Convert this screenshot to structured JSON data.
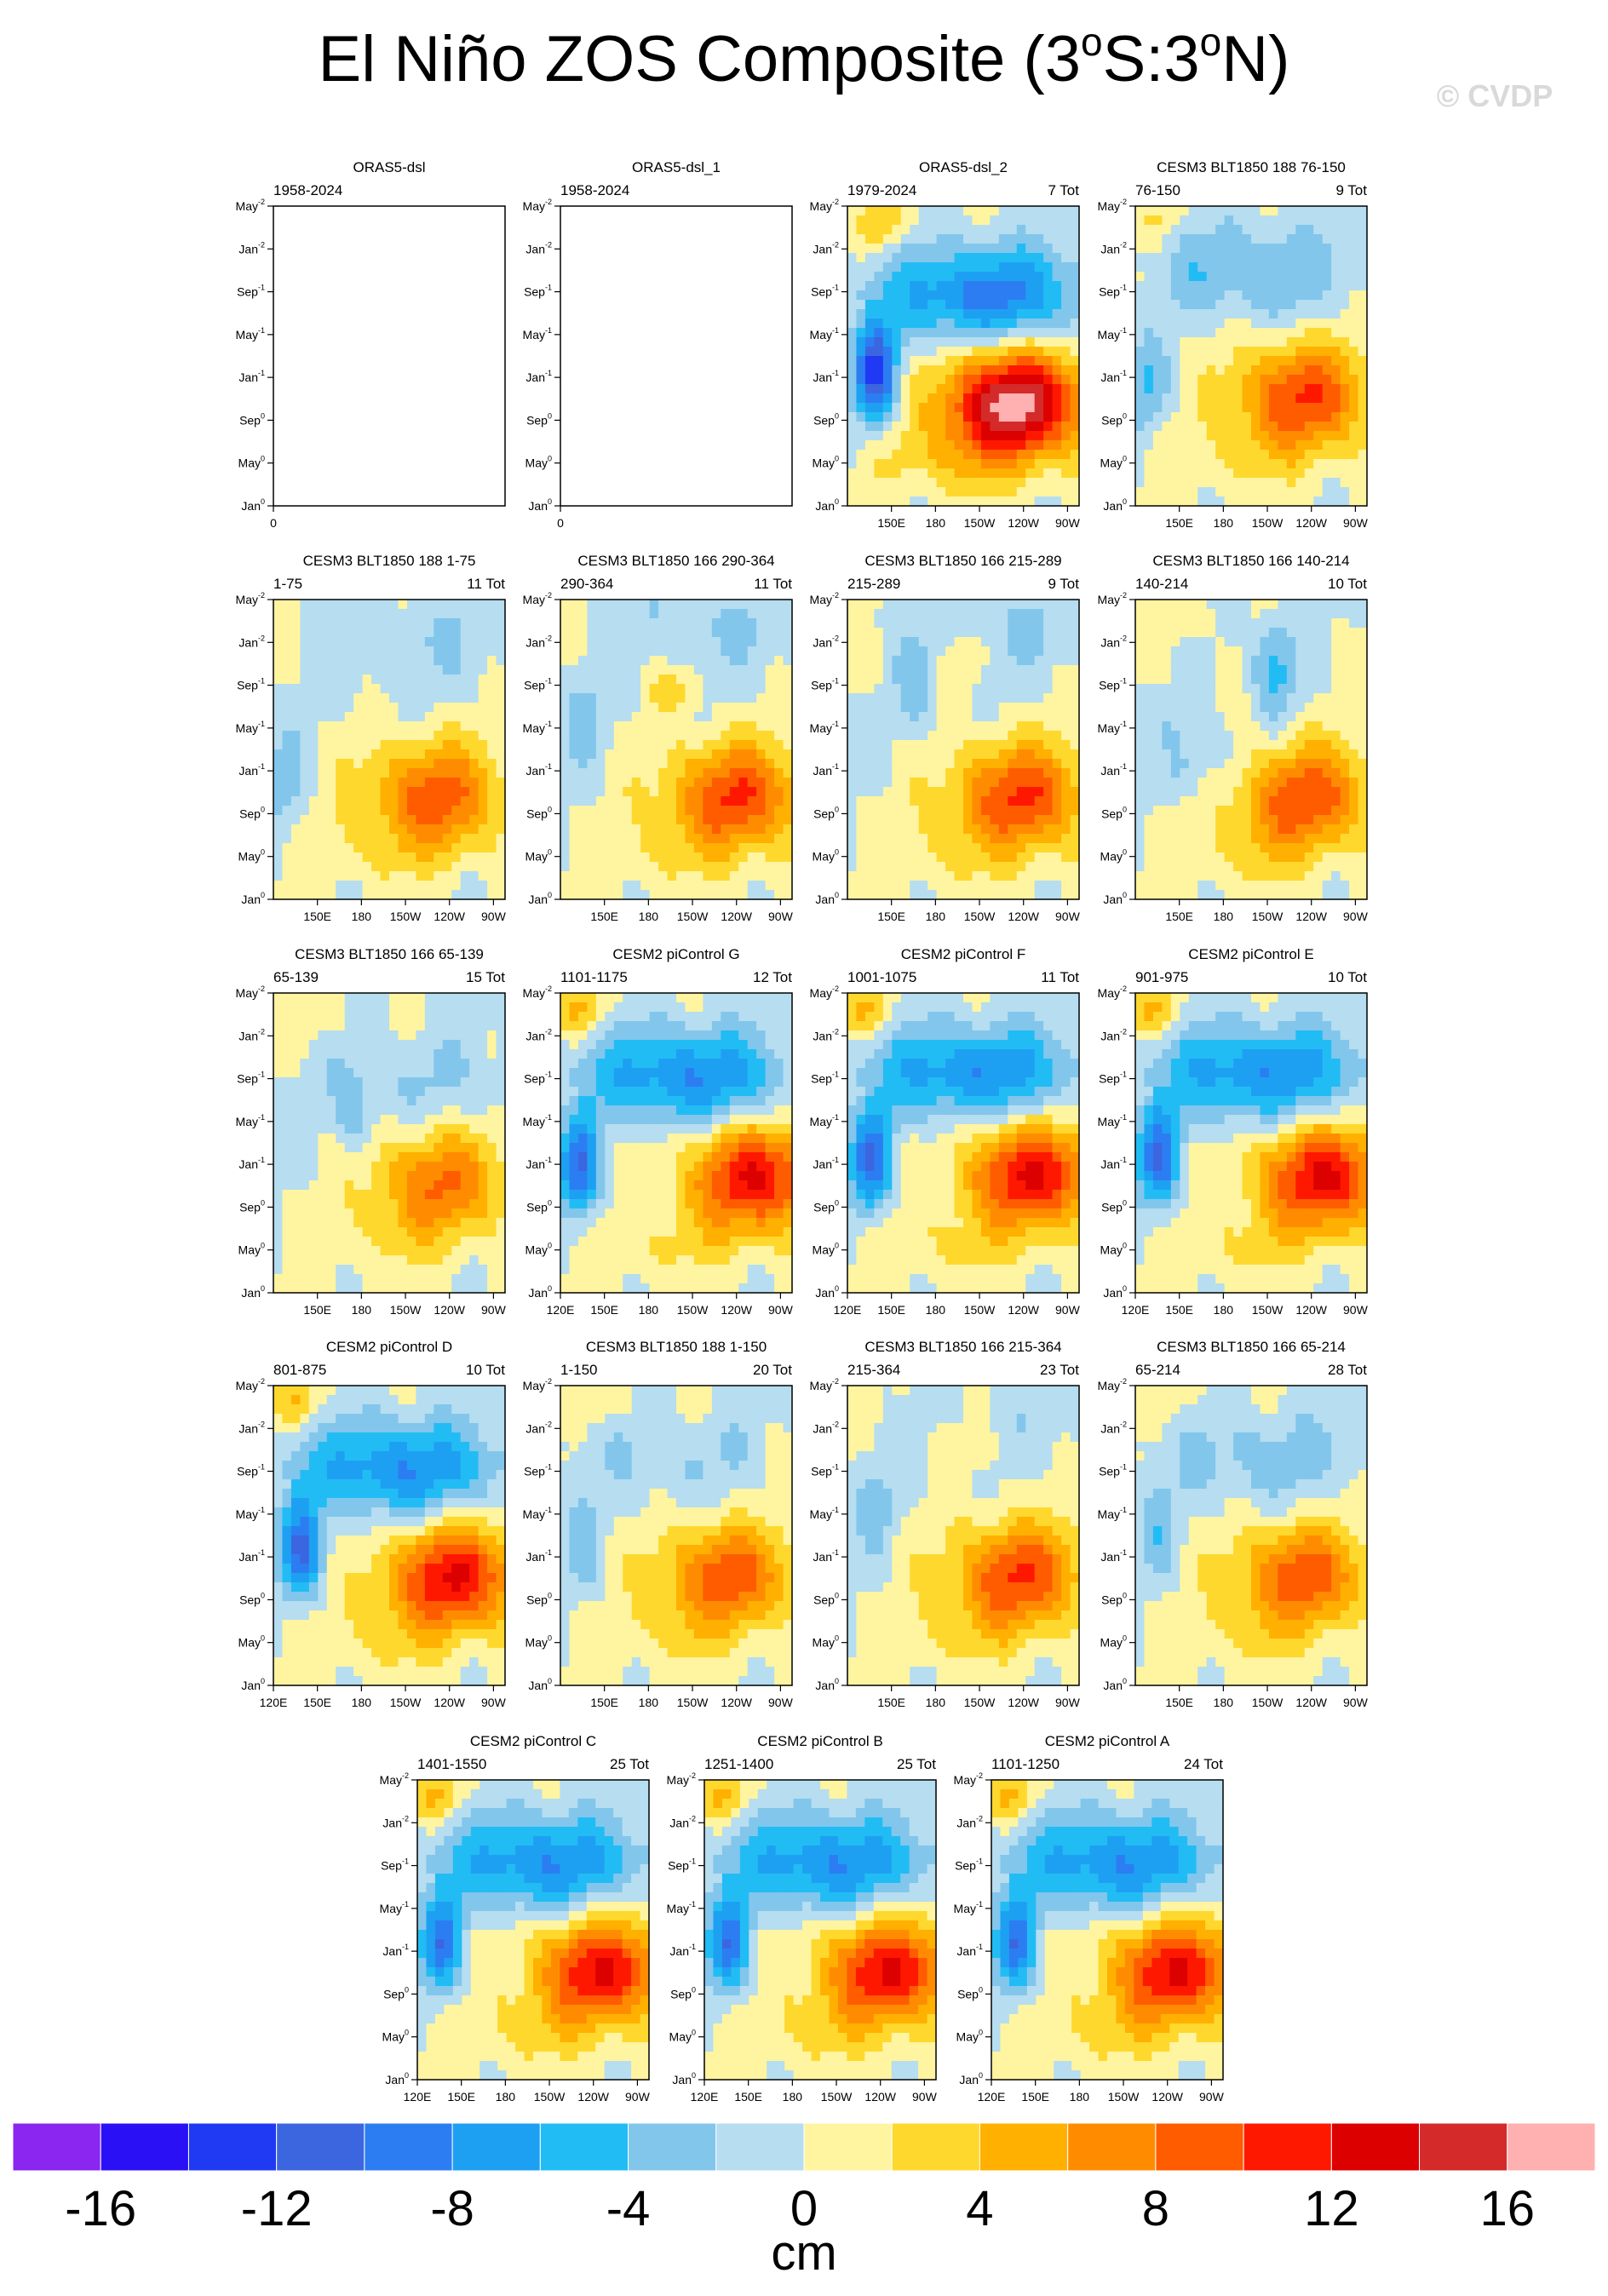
{
  "title": "El Niño ZOS Composite (3°S:3°N)",
  "title_parts": {
    "a": "El Niño ZOS Composite (3",
    "sup": "o",
    "b": "S:3",
    "c": "N)"
  },
  "watermark": "© CVDP",
  "colors": {
    "palette": [
      "#8a26f0",
      "#2a10f5",
      "#1f3af2",
      "#3b66e0",
      "#2c7df2",
      "#1ea0f2",
      "#22bcf5",
      "#82c6ec",
      "#b6ddf0",
      "#fff4a0",
      "#ffd82e",
      "#ffb000",
      "#ff8c00",
      "#ff5c00",
      "#ff1800",
      "#dd0000",
      "#d42a2a",
      "#ffb0b0"
    ],
    "contour": "#6b6b6b"
  },
  "chart_data": {
    "type": "heatmap",
    "colorbar": {
      "levels": [
        -16,
        -14,
        -12,
        -10,
        -8,
        -6,
        -4,
        -2,
        0,
        2,
        4,
        6,
        8,
        10,
        12,
        14,
        16
      ],
      "label_values": [
        "-16",
        "-12",
        "-8",
        "-4",
        "0",
        "4",
        "8",
        "12",
        "16"
      ],
      "units": "cm"
    },
    "y_ticks": [
      {
        "name": "May",
        "sup": "-2"
      },
      {
        "name": "Jan",
        "sup": "-2"
      },
      {
        "name": "Sep",
        "sup": "-1"
      },
      {
        "name": "May",
        "sup": "-1"
      },
      {
        "name": "Jan",
        "sup": "-1"
      },
      {
        "name": "Sep",
        "sup": "0"
      },
      {
        "name": "May",
        "sup": "0"
      },
      {
        "name": "Jan",
        "sup": "0"
      }
    ],
    "x_ticks_full": [
      "120E",
      "150E",
      "180",
      "150W",
      "120W",
      "90W"
    ],
    "x_ticks_short": [
      "150E",
      "180",
      "150W",
      "120W",
      "90W"
    ],
    "x_ticks_empty": [
      "0"
    ],
    "panels": [
      {
        "title": "ORAS5-dsl",
        "left": "1958-2024",
        "right": "",
        "ticks": "empty",
        "pattern": null
      },
      {
        "title": "ORAS5-dsl_1",
        "left": "1958-2024",
        "right": "",
        "ticks": "empty",
        "pattern": null
      },
      {
        "title": "ORAS5-dsl_2",
        "left": "1979-2024",
        "right": "7 Tot",
        "ticks": "short",
        "pattern": {
          "peak": 17,
          "px": 0.72,
          "py": 0.66,
          "trough": -13,
          "tx": 0.12,
          "ty": 0.56,
          "np": -9,
          "npx": 0.6,
          "npy": 0.3,
          "wp": 4,
          "wpx": 0.15,
          "wpy": 0.06
        }
      },
      {
        "title": "CESM3 BLT1850 188 76-150",
        "left": "76-150",
        "right": "9 Tot",
        "ticks": "short",
        "pattern": {
          "peak": 10,
          "px": 0.72,
          "py": 0.64,
          "trough": -4,
          "tx": 0.05,
          "ty": 0.6,
          "np": -4,
          "npx": 0.5,
          "npy": 0.22,
          "wp": 2,
          "wpx": 0.1,
          "wpy": 0.05
        }
      },
      {
        "title": "CESM3 BLT1850 188 1-75",
        "left": "1-75",
        "right": "11 Tot",
        "ticks": "short",
        "pattern": {
          "peak": 9,
          "px": 0.7,
          "py": 0.66,
          "trough": -3,
          "tx": 0.05,
          "ty": 0.6,
          "np": -2,
          "npx": 0.6,
          "npy": 0.15,
          "wp": 1,
          "wpx": 0.3,
          "wpy": 0.1
        }
      },
      {
        "title": "CESM3 BLT1850 166 290-364",
        "left": "290-364",
        "right": "11 Tot",
        "ticks": "short",
        "pattern": {
          "peak": 10,
          "px": 0.76,
          "py": 0.66,
          "trough": -3,
          "tx": 0.1,
          "ty": 0.4,
          "np": -2,
          "npx": 0.7,
          "npy": 0.1,
          "wp": 3,
          "wpx": 0.5,
          "wpy": 0.3
        }
      },
      {
        "title": "CESM3 BLT1850 166 215-289",
        "left": "215-289",
        "right": "9 Tot",
        "ticks": "short",
        "pattern": {
          "peak": 10,
          "px": 0.75,
          "py": 0.66,
          "trough": -3,
          "tx": 0.3,
          "ty": 0.3,
          "np": -2,
          "npx": 0.8,
          "npy": 0.1,
          "wp": 2,
          "wpx": 0.5,
          "wpy": 0.2
        }
      },
      {
        "title": "CESM3 BLT1850 166 140-214",
        "left": "140-214",
        "right": "10 Tot",
        "ticks": "short",
        "pattern": {
          "peak": 10,
          "px": 0.72,
          "py": 0.66,
          "trough": -5,
          "tx": 0.6,
          "ty": 0.22,
          "np": -3,
          "npx": 0.1,
          "npy": 0.55,
          "wp": 2,
          "wpx": 0.2,
          "wpy": 0.05
        }
      },
      {
        "title": "CESM3 BLT1850 166 65-139",
        "left": "65-139",
        "right": "15 Tot",
        "ticks": "short",
        "pattern": {
          "peak": 8,
          "px": 0.72,
          "py": 0.64,
          "trough": -3,
          "tx": 0.35,
          "ty": 0.4,
          "np": -2,
          "npx": 0.7,
          "npy": 0.3,
          "wp": 2,
          "wpx": 0.2,
          "wpy": 0.08
        }
      },
      {
        "title": "CESM2 piControl G",
        "left": "1101-1175",
        "right": "12 Tot",
        "ticks": "full",
        "pattern": {
          "peak": 12,
          "px": 0.85,
          "py": 0.62,
          "trough": -10,
          "tx": 0.08,
          "ty": 0.58,
          "np": -8,
          "npx": 0.55,
          "npy": 0.28,
          "wp": 4,
          "wpx": 0.08,
          "wpy": 0.06
        }
      },
      {
        "title": "CESM2 piControl F",
        "left": "1001-1075",
        "right": "11 Tot",
        "ticks": "full",
        "pattern": {
          "peak": 12,
          "px": 0.8,
          "py": 0.61,
          "trough": -10,
          "tx": 0.1,
          "ty": 0.56,
          "np": -8,
          "npx": 0.55,
          "npy": 0.27,
          "wp": 4,
          "wpx": 0.08,
          "wpy": 0.06
        }
      },
      {
        "title": "CESM2 piControl E",
        "left": "901-975",
        "right": "10 Tot",
        "ticks": "full",
        "pattern": {
          "peak": 12,
          "px": 0.82,
          "py": 0.62,
          "trough": -10,
          "tx": 0.1,
          "ty": 0.55,
          "np": -8,
          "npx": 0.55,
          "npy": 0.27,
          "wp": 4,
          "wpx": 0.08,
          "wpy": 0.06
        }
      },
      {
        "title": "CESM2 piControl D",
        "left": "801-875",
        "right": "10 Tot",
        "ticks": "full",
        "pattern": {
          "peak": 12,
          "px": 0.78,
          "py": 0.64,
          "trough": -10,
          "tx": 0.12,
          "ty": 0.55,
          "np": -8,
          "npx": 0.55,
          "npy": 0.28,
          "wp": 4,
          "wpx": 0.1,
          "wpy": 0.06
        }
      },
      {
        "title": "CESM3 BLT1850 188 1-150",
        "left": "1-150",
        "right": "20 Tot",
        "ticks": "short",
        "pattern": {
          "peak": 9,
          "px": 0.72,
          "py": 0.64,
          "trough": -3,
          "tx": 0.1,
          "ty": 0.55,
          "np": -2,
          "npx": 0.5,
          "npy": 0.25,
          "wp": 2,
          "wpx": 0.2,
          "wpy": 0.05
        }
      },
      {
        "title": "CESM3 BLT1850 166 215-364",
        "left": "215-364",
        "right": "23 Tot",
        "ticks": "short",
        "pattern": {
          "peak": 10,
          "px": 0.74,
          "py": 0.64,
          "trough": -3,
          "tx": 0.12,
          "ty": 0.4,
          "np": -1,
          "npx": 0.8,
          "npy": 0.1,
          "wp": 2,
          "wpx": 0.5,
          "wpy": 0.2
        }
      },
      {
        "title": "CESM3 BLT1850 166 65-214",
        "left": "65-214",
        "right": "28 Tot",
        "ticks": "short",
        "pattern": {
          "peak": 9,
          "px": 0.72,
          "py": 0.64,
          "trough": -3,
          "tx": 0.1,
          "ty": 0.5,
          "np": -3,
          "npx": 0.55,
          "npy": 0.25,
          "wp": 1,
          "wpx": 0.2,
          "wpy": 0.05
        }
      },
      {
        "title": "CESM2 piControl C",
        "left": "1401-1550",
        "right": "25 Tot",
        "ticks": "full",
        "pattern": {
          "peak": 12,
          "px": 0.8,
          "py": 0.64,
          "trough": -9,
          "tx": 0.1,
          "ty": 0.55,
          "np": -8,
          "npx": 0.55,
          "npy": 0.28,
          "wp": 4,
          "wpx": 0.08,
          "wpy": 0.06
        }
      },
      {
        "title": "CESM2 piControl B",
        "left": "1251-1400",
        "right": "25 Tot",
        "ticks": "full",
        "pattern": {
          "peak": 12,
          "px": 0.8,
          "py": 0.64,
          "trough": -9,
          "tx": 0.1,
          "ty": 0.55,
          "np": -8,
          "npx": 0.55,
          "npy": 0.28,
          "wp": 4,
          "wpx": 0.08,
          "wpy": 0.06
        }
      },
      {
        "title": "CESM2 piControl A",
        "left": "1101-1250",
        "right": "24 Tot",
        "ticks": "full",
        "pattern": {
          "peak": 12,
          "px": 0.8,
          "py": 0.64,
          "trough": -9,
          "tx": 0.1,
          "ty": 0.55,
          "np": -8,
          "npx": 0.55,
          "npy": 0.28,
          "wp": 4,
          "wpx": 0.08,
          "wpy": 0.06
        }
      }
    ]
  }
}
